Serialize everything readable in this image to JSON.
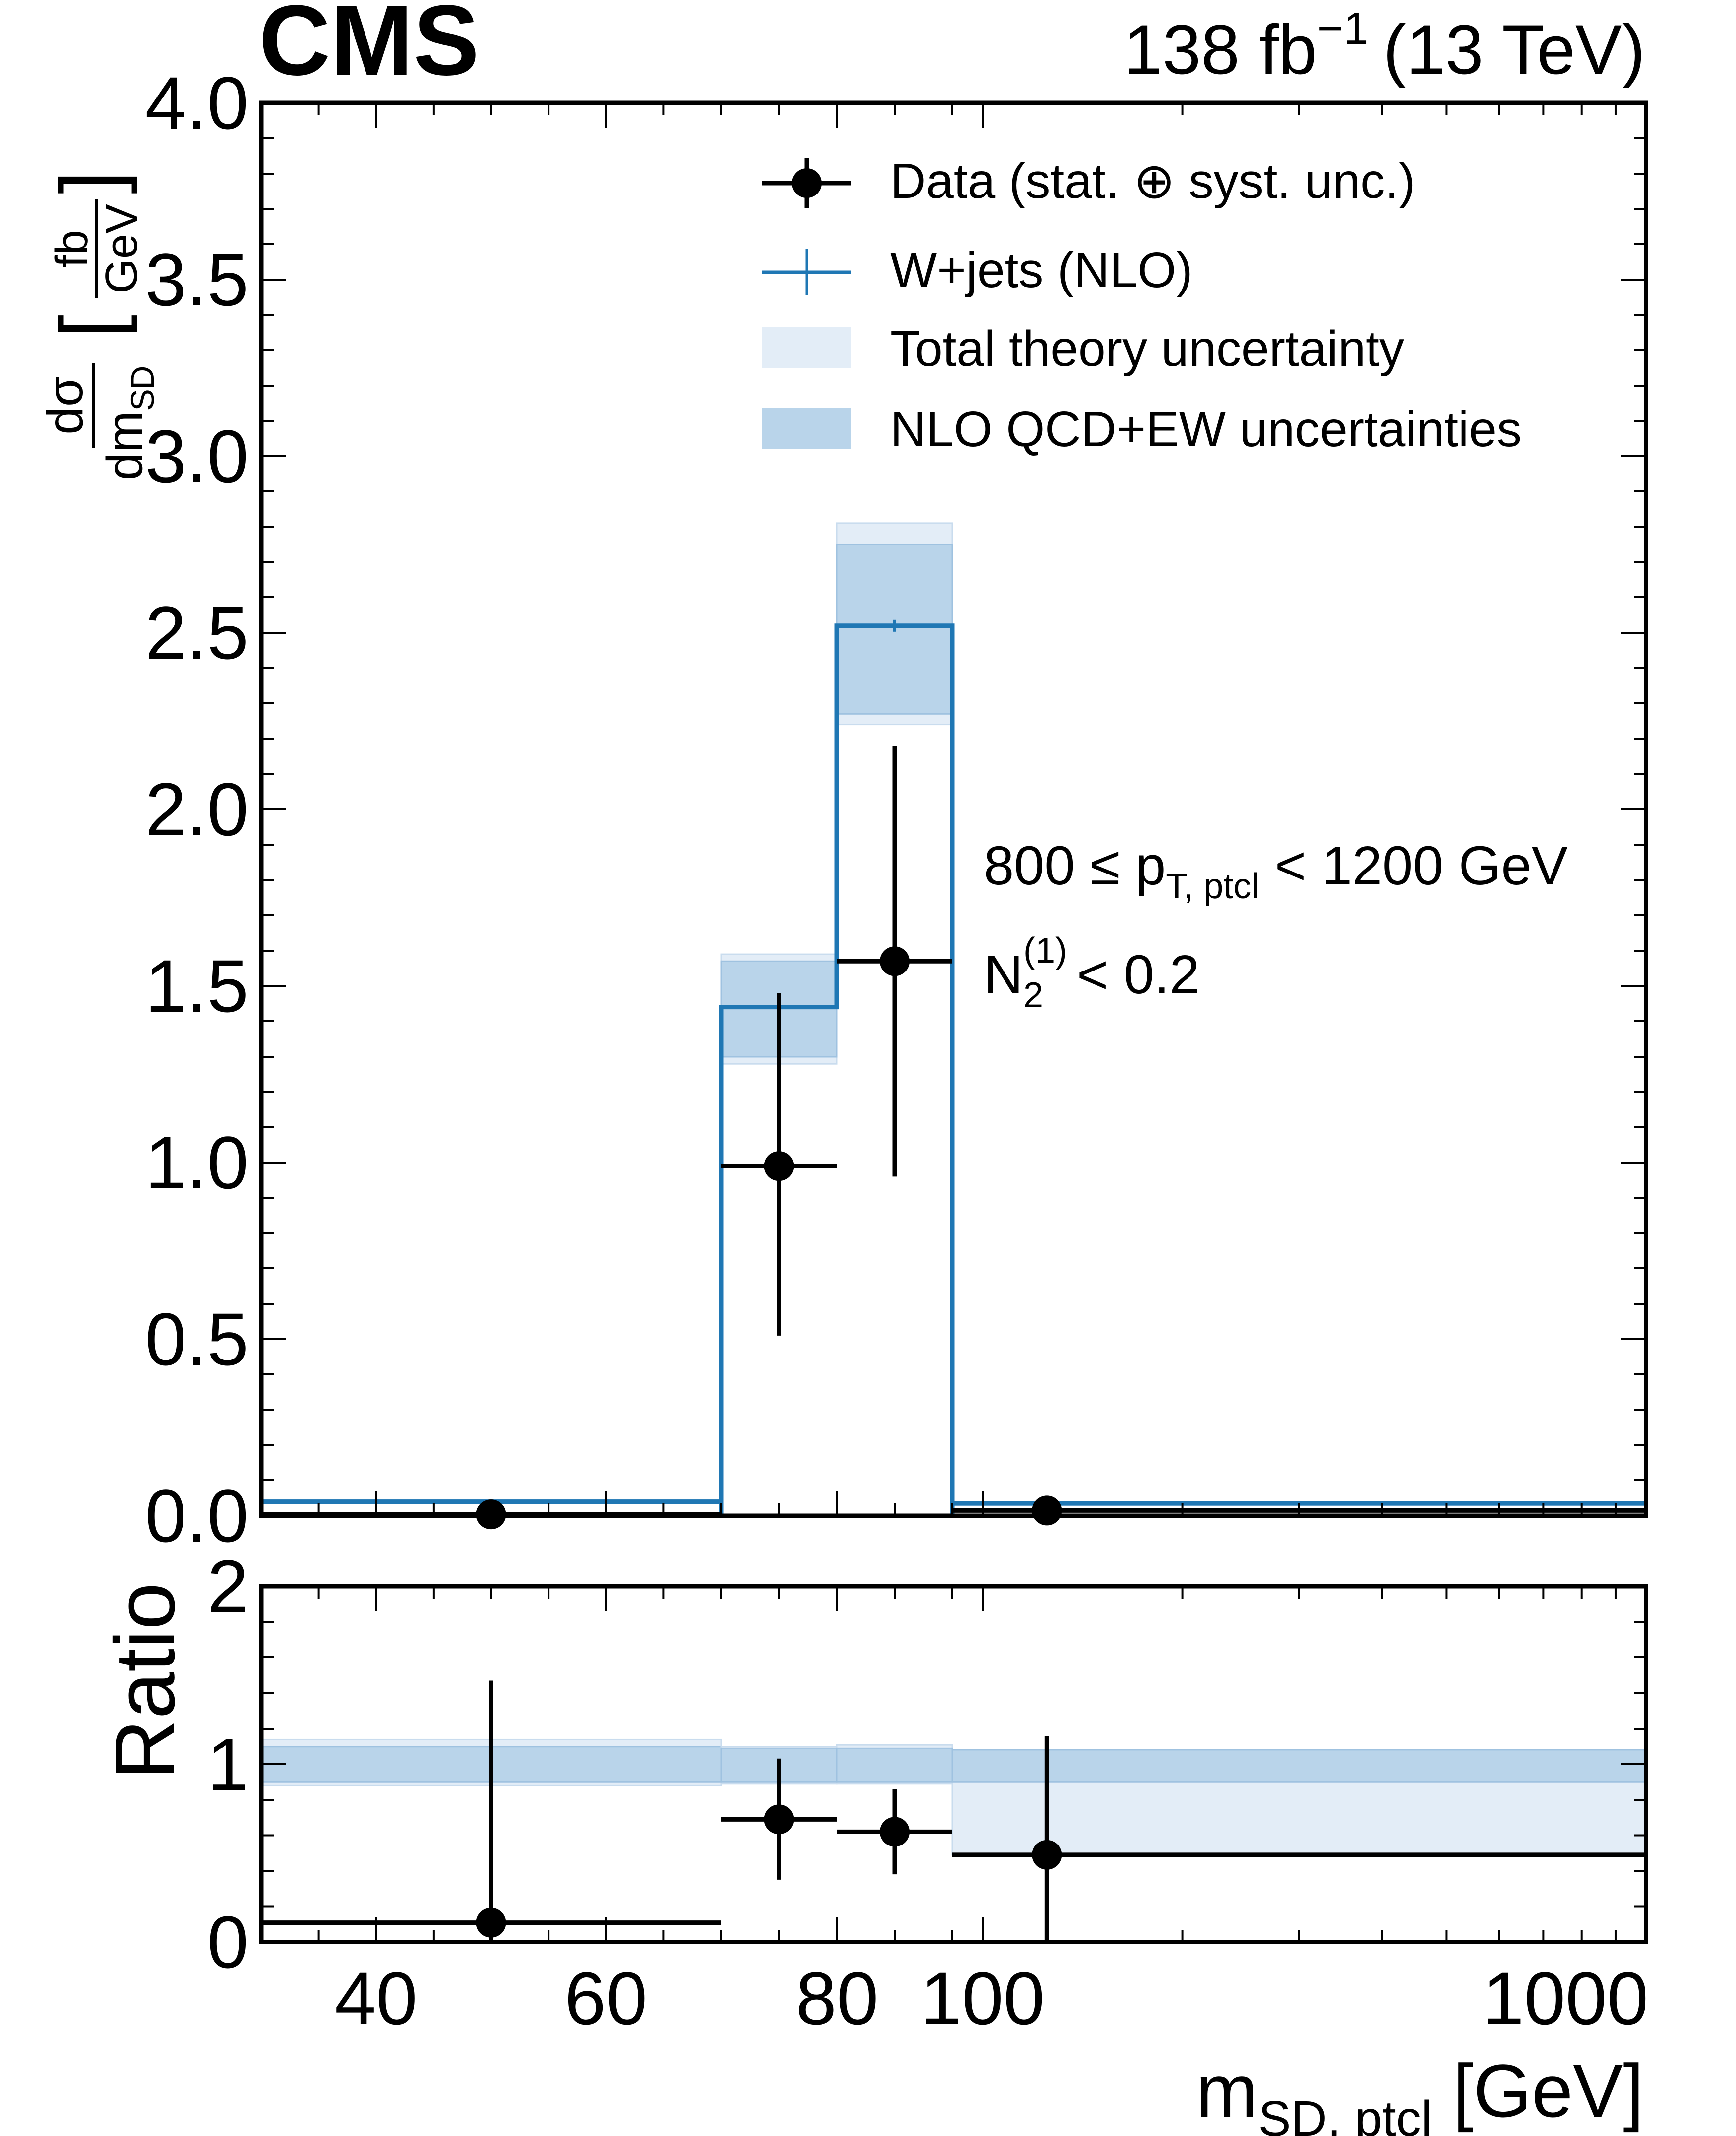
{
  "header": {
    "experiment": "CMS",
    "lumi_value": "138 fb",
    "lumi_exponent": "−1",
    "energy": "(13 TeV)"
  },
  "legend": {
    "data": "Data (stat. ⊕ syst. unc.)",
    "wjets": "W+jets (NLO)",
    "total_unc": "Total theory uncertainty",
    "nlo_unc": "NLO QCD+EW uncertainties"
  },
  "annotation": {
    "pt_prefix": "800 ≤ p",
    "pt_sub": "T, ptcl",
    "pt_suffix": " < 1200 GeV",
    "n2_base": "N",
    "n2_sub": "2",
    "n2_sup": "(1)",
    "n2_suffix": " < 0.2"
  },
  "axes": {
    "ylabel_num": "dσ",
    "ylabel_den_main": "dm",
    "ylabel_den_sub": "SD",
    "ylabel_unit_num": "fb",
    "ylabel_unit_den": "GeV",
    "ratio_label": "Ratio",
    "xlabel_main": "m",
    "xlabel_sub": "SD, ptcl",
    "xlabel_unit": " [GeV]"
  },
  "colors": {
    "mc_line": "#1f77b4",
    "nlo_band": "#b9d4ea",
    "total_band": "#e3edf7",
    "data": "#000000"
  },
  "chart_data": [
    {
      "type": "line",
      "panel": "main",
      "xlabel": "m_SD,ptcl [GeV]",
      "ylabel": "dσ/dm_SD [fb/GeV]",
      "ylim": [
        0,
        4.0
      ],
      "yticks": [
        "0.0",
        "0.5",
        "1.0",
        "1.5",
        "2.0",
        "2.5",
        "3.0",
        "3.5",
        "4.0"
      ],
      "yticks_values": [
        0,
        0.5,
        1.0,
        1.5,
        2.0,
        2.5,
        3.0,
        3.5,
        4.0
      ],
      "bins": [
        {
          "edges": [
            30,
            70
          ],
          "center": 50
        },
        {
          "edges": [
            70,
            80
          ],
          "center": 75
        },
        {
          "edges": [
            80,
            90
          ],
          "center": 85
        },
        {
          "edges": [
            90,
            1000
          ],
          "center": 125
        }
      ],
      "series": [
        {
          "name": "W+jets (NLO)",
          "values": [
            0.04,
            1.44,
            2.52,
            0.035
          ],
          "total_unc_low": [
            0.035,
            1.28,
            2.24,
            0.03
          ],
          "total_unc_high": [
            0.045,
            1.59,
            2.81,
            0.04
          ],
          "nlo_unc_low": [
            0.036,
            1.3,
            2.27,
            0.031
          ],
          "nlo_unc_high": [
            0.044,
            1.57,
            2.75,
            0.039
          ]
        },
        {
          "name": "Data",
          "values": [
            0.004,
            0.99,
            1.57,
            0.015
          ],
          "err_low": [
            0.03,
            0.48,
            0.61,
            0.015
          ],
          "err_high": [
            0.03,
            0.49,
            0.61,
            0.015
          ]
        }
      ]
    },
    {
      "type": "scatter",
      "panel": "ratio",
      "ylabel": "Ratio",
      "ylim": [
        0,
        2
      ],
      "yticks": [
        "0",
        "1",
        "2"
      ],
      "yticks_values": [
        0,
        1,
        2
      ],
      "xticks": [
        "40",
        "60",
        "80",
        "100",
        "1000"
      ],
      "series": [
        {
          "name": "Data / W+jets",
          "values": [
            0.11,
            0.69,
            0.62,
            0.49
          ],
          "err_low": [
            0.11,
            0.34,
            0.24,
            0.49
          ],
          "err_high": [
            1.36,
            0.34,
            0.24,
            0.67
          ]
        },
        {
          "name": "Total theory uncertainty",
          "low": [
            0.88,
            0.89,
            0.89,
            0.49
          ],
          "high": [
            1.14,
            1.1,
            1.11,
            1.08
          ]
        },
        {
          "name": "NLO QCD+EW uncertainties",
          "low": [
            0.9,
            0.9,
            0.9,
            0.9
          ],
          "high": [
            1.1,
            1.09,
            1.09,
            1.08
          ]
        }
      ]
    }
  ]
}
